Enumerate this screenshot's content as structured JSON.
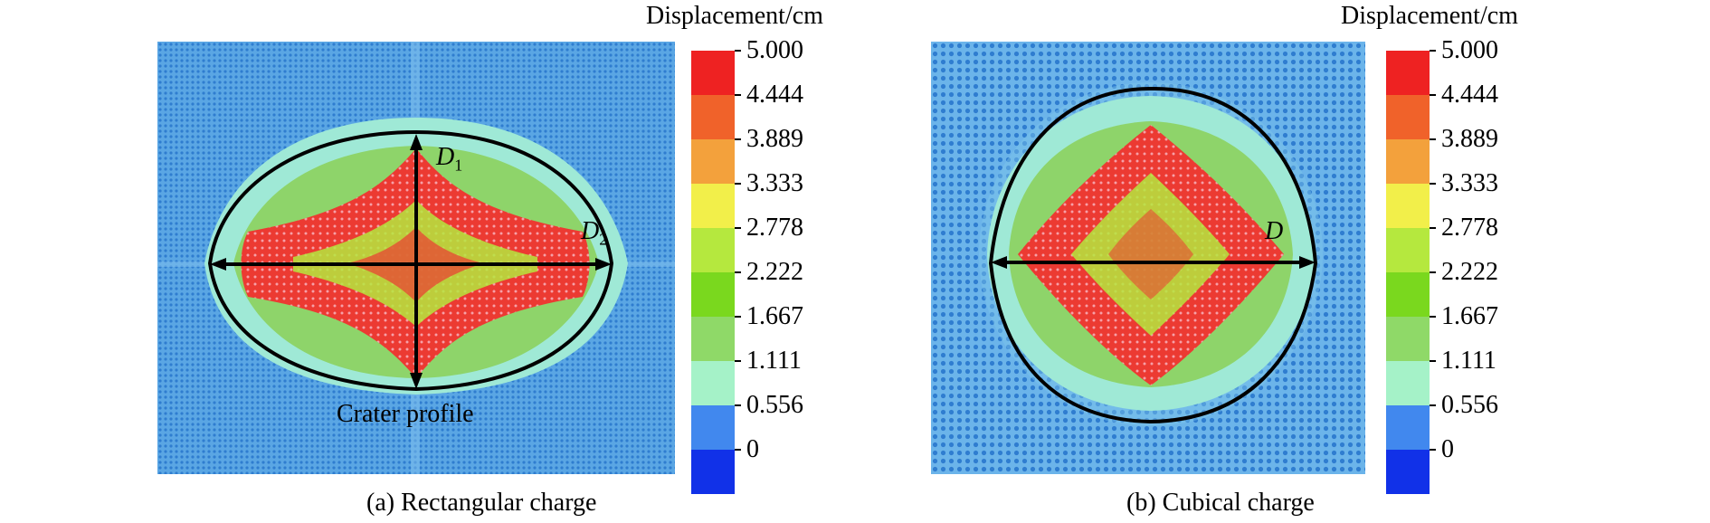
{
  "panels": [
    {
      "caption": "(a) Rectangular charge",
      "colorbar_title": "Displacement/cm",
      "annotations": {
        "d1": {
          "letter": "D",
          "sub": "1"
        },
        "d2": {
          "letter": "D",
          "sub": "2"
        },
        "crater": "Crater profile"
      }
    },
    {
      "caption": "(b) Cubical charge",
      "colorbar_title": "Displacement/cm",
      "annotations": {
        "d": {
          "letter": "D"
        }
      }
    }
  ],
  "colorbar": {
    "ticks": [
      "5.000",
      "4.444",
      "3.889",
      "3.333",
      "2.778",
      "2.222",
      "1.667",
      "1.111",
      "0.556",
      "0"
    ],
    "colors": [
      "#ee2222",
      "#f0622a",
      "#f3a13c",
      "#f2ef4a",
      "#b5e83e",
      "#7ad81e",
      "#8fd968",
      "#a5f2c8",
      "#4188ee",
      "#1131e8"
    ]
  },
  "colors": {
    "background_field": "#4b9bd9",
    "outer_cyan": "#9fe9d6",
    "green": "#8ed46a",
    "red": "#ec3a32",
    "profile": "#000000"
  }
}
